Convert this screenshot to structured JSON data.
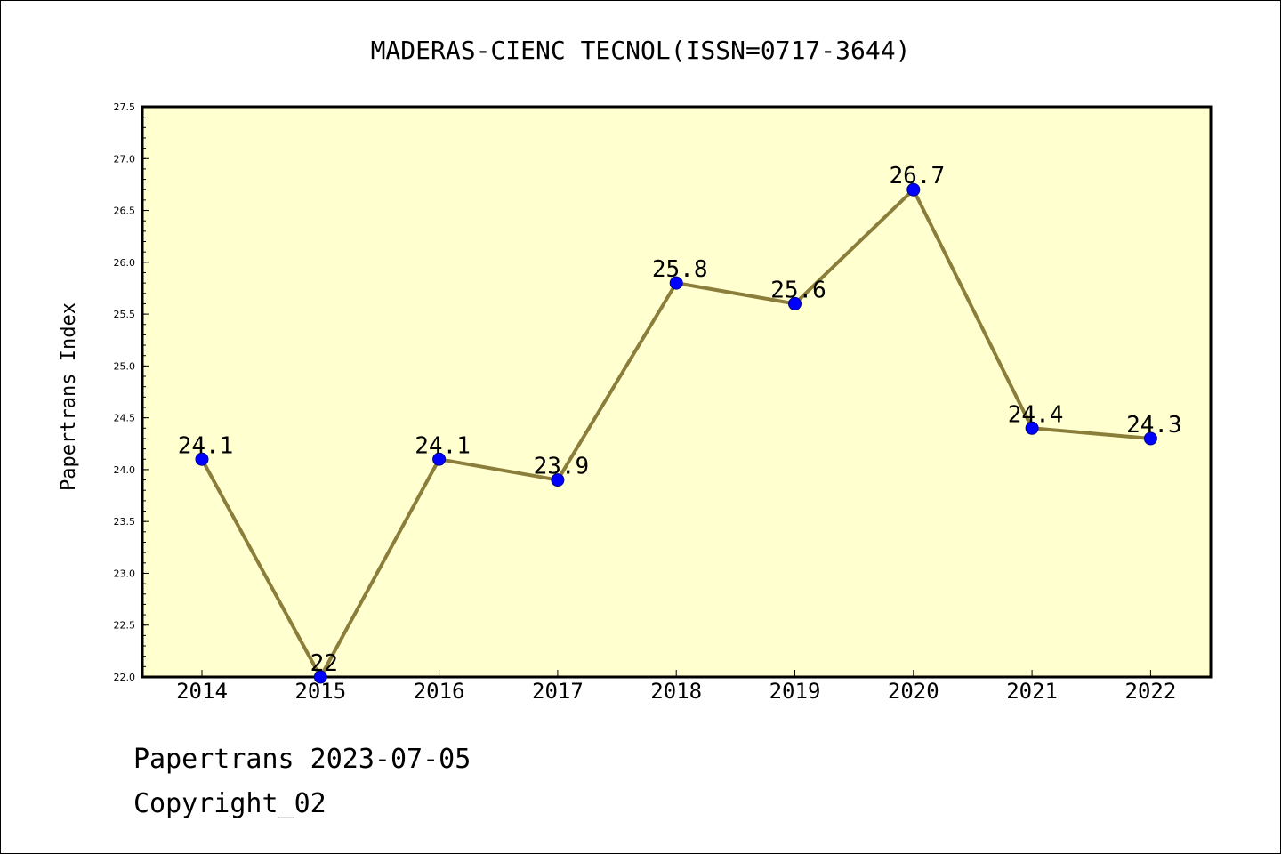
{
  "chart_data": {
    "type": "line",
    "title": "MADERAS-CIENC TECNOL(ISSN=0717-3644)",
    "xlabel": "",
    "ylabel": "Papertrans Index",
    "categories": [
      "2014",
      "2015",
      "2016",
      "2017",
      "2018",
      "2019",
      "2020",
      "2021",
      "2022"
    ],
    "values": [
      24.1,
      22,
      24.1,
      23.9,
      25.8,
      25.6,
      26.7,
      24.4,
      24.3
    ],
    "data_labels": [
      "24.1",
      "22",
      "24.1",
      "23.9",
      "25.8",
      "25.6",
      "26.7",
      "24.4",
      "24.3"
    ],
    "ylim": [
      22.0,
      27.5
    ],
    "yticks": [
      "22.0",
      "22.5",
      "23.0",
      "23.5",
      "24.0",
      "24.5",
      "25.0",
      "25.5",
      "26.0",
      "26.5",
      "27.0",
      "27.5"
    ],
    "grid": false,
    "legend": "none",
    "colors": {
      "plot_background": "#ffffd0",
      "line": "#8b7d3a",
      "marker": "#0000ff",
      "marker_edge": "#00008b"
    }
  },
  "footer": {
    "line1": "Papertrans 2023-07-05",
    "line2": "Copyright_02"
  }
}
